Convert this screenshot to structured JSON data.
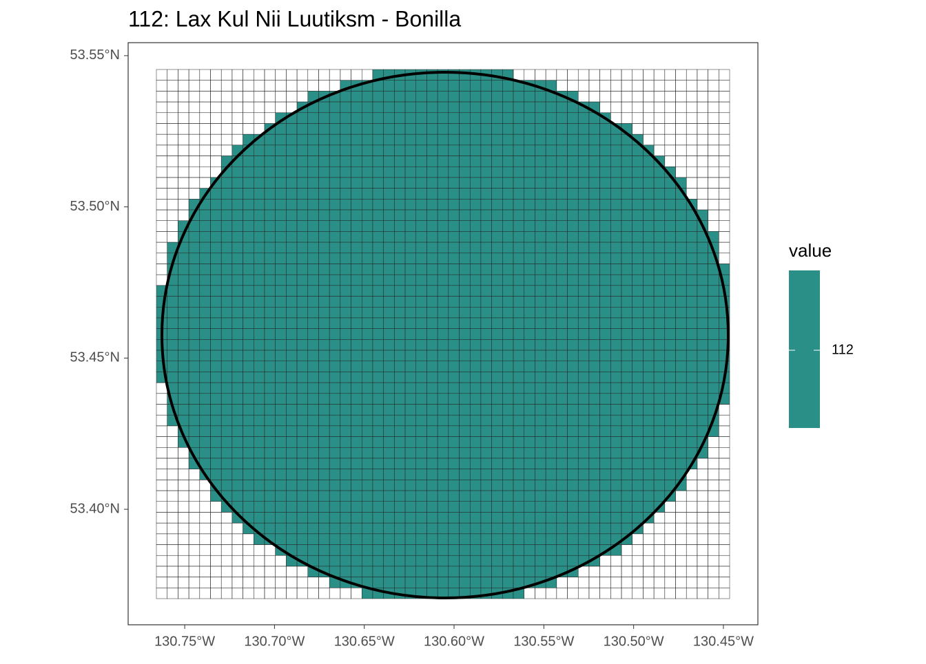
{
  "chart_data": {
    "type": "raster",
    "title": "112: Lax Kul Nii Luutiksm - Bonilla",
    "xlim": [
      -130.7815,
      -130.4308
    ],
    "ylim": [
      53.3618,
      53.5543
    ],
    "xticks": [
      {
        "value": -130.75,
        "label": "130.75°W"
      },
      {
        "value": -130.7,
        "label": "130.70°W"
      },
      {
        "value": -130.65,
        "label": "130.65°W"
      },
      {
        "value": -130.6,
        "label": "130.60°W"
      },
      {
        "value": -130.55,
        "label": "130.55°W"
      },
      {
        "value": -130.5,
        "label": "130.50°W"
      },
      {
        "value": -130.45,
        "label": "130.45°W"
      }
    ],
    "yticks": [
      {
        "value": 53.4,
        "label": "53.40°N"
      },
      {
        "value": 53.45,
        "label": "53.45°N"
      },
      {
        "value": 53.5,
        "label": "53.50°N"
      },
      {
        "value": 53.55,
        "label": "53.55°N"
      }
    ],
    "value": 112,
    "color": "#2a9087",
    "legend": {
      "title": "value",
      "ticks": [
        112
      ]
    }
  }
}
